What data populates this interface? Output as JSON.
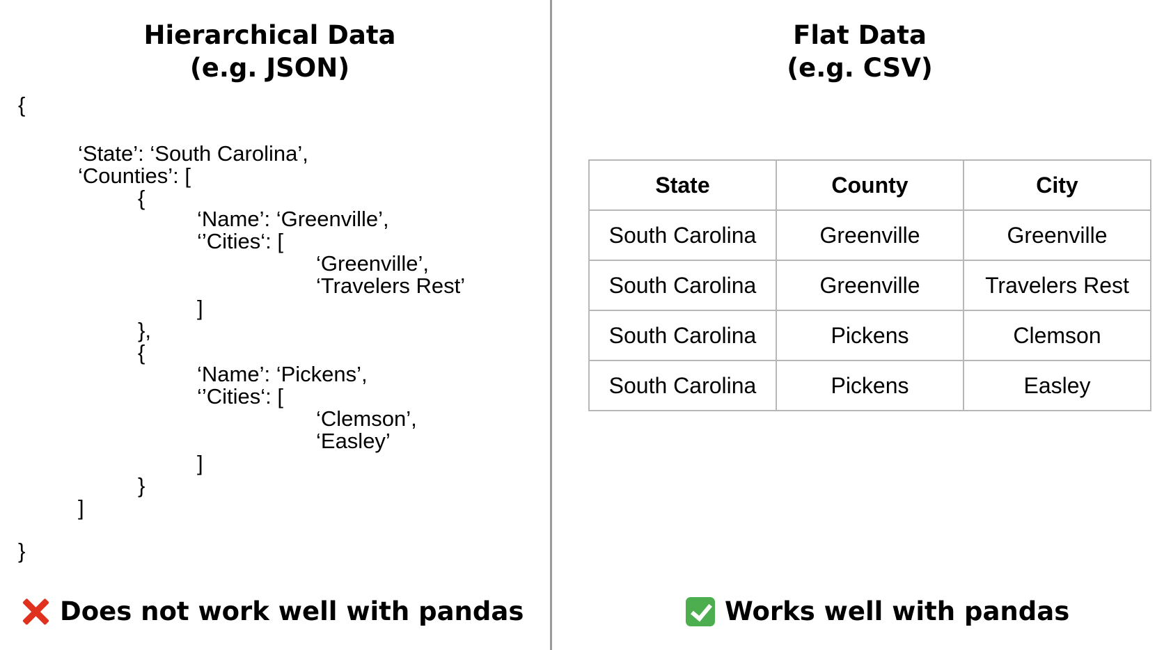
{
  "left_panel": {
    "title_line1": "Hierarchical Data",
    "title_line2": "(e.g. JSON)",
    "json_lines": [
      "{",
      "‘State’: ‘South Carolina’,",
      "‘Counties’: [",
      "{",
      "‘Name’: ‘Greenville’,",
      "‘’Cities‘: [",
      "‘Greenville’,",
      "‘Travelers Rest’",
      "]",
      "},",
      "{",
      "‘Name’: ‘Pickens’,",
      "‘’Cities‘: [",
      "‘Clemson’,",
      "‘Easley’",
      "]",
      "}",
      "]",
      "}"
    ],
    "verdict": "Does not work well with pandas",
    "verdict_icon": "cross-mark-icon",
    "verdict_icon_color": "#e0301e"
  },
  "right_panel": {
    "title_line1": "Flat Data",
    "title_line2": "(e.g. CSV)",
    "table": {
      "headers": [
        "State",
        "County",
        "City"
      ],
      "rows": [
        [
          "South Carolina",
          "Greenville",
          "Greenville"
        ],
        [
          "South Carolina",
          "Greenville",
          "Travelers Rest"
        ],
        [
          "South Carolina",
          "Pickens",
          "Clemson"
        ],
        [
          "South Carolina",
          "Pickens",
          "Easley"
        ]
      ]
    },
    "verdict": "Works well with pandas",
    "verdict_icon": "check-mark-button-icon",
    "verdict_icon_color": "#4cae4f"
  }
}
